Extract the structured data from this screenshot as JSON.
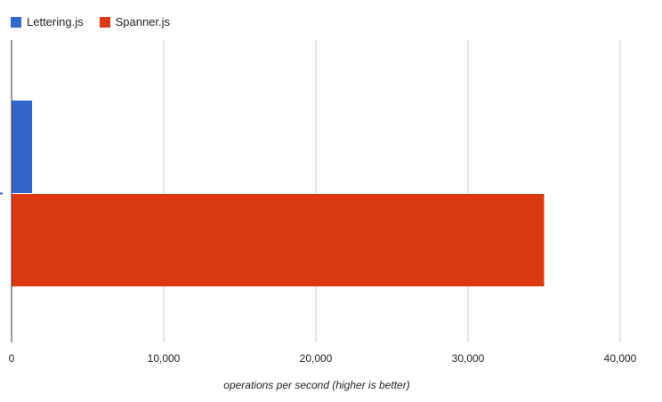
{
  "chart_data": {
    "type": "bar",
    "orientation": "horizontal",
    "categories": [
      ""
    ],
    "series": [
      {
        "name": "Lettering.js",
        "values": [
          1350
        ],
        "color": "#3366cc"
      },
      {
        "name": "Spanner.js",
        "values": [
          35000
        ],
        "color": "#dc3912"
      }
    ],
    "xlabel": "operations per second (higher is better)",
    "ylabel": "",
    "xlim": [
      0,
      40000
    ],
    "xticks": [
      0,
      10000,
      20000,
      30000,
      40000
    ],
    "xtick_labels": [
      "0",
      "10,000",
      "20,000",
      "30,000",
      "40,000"
    ],
    "grid": true,
    "legend_position": "top-left"
  }
}
